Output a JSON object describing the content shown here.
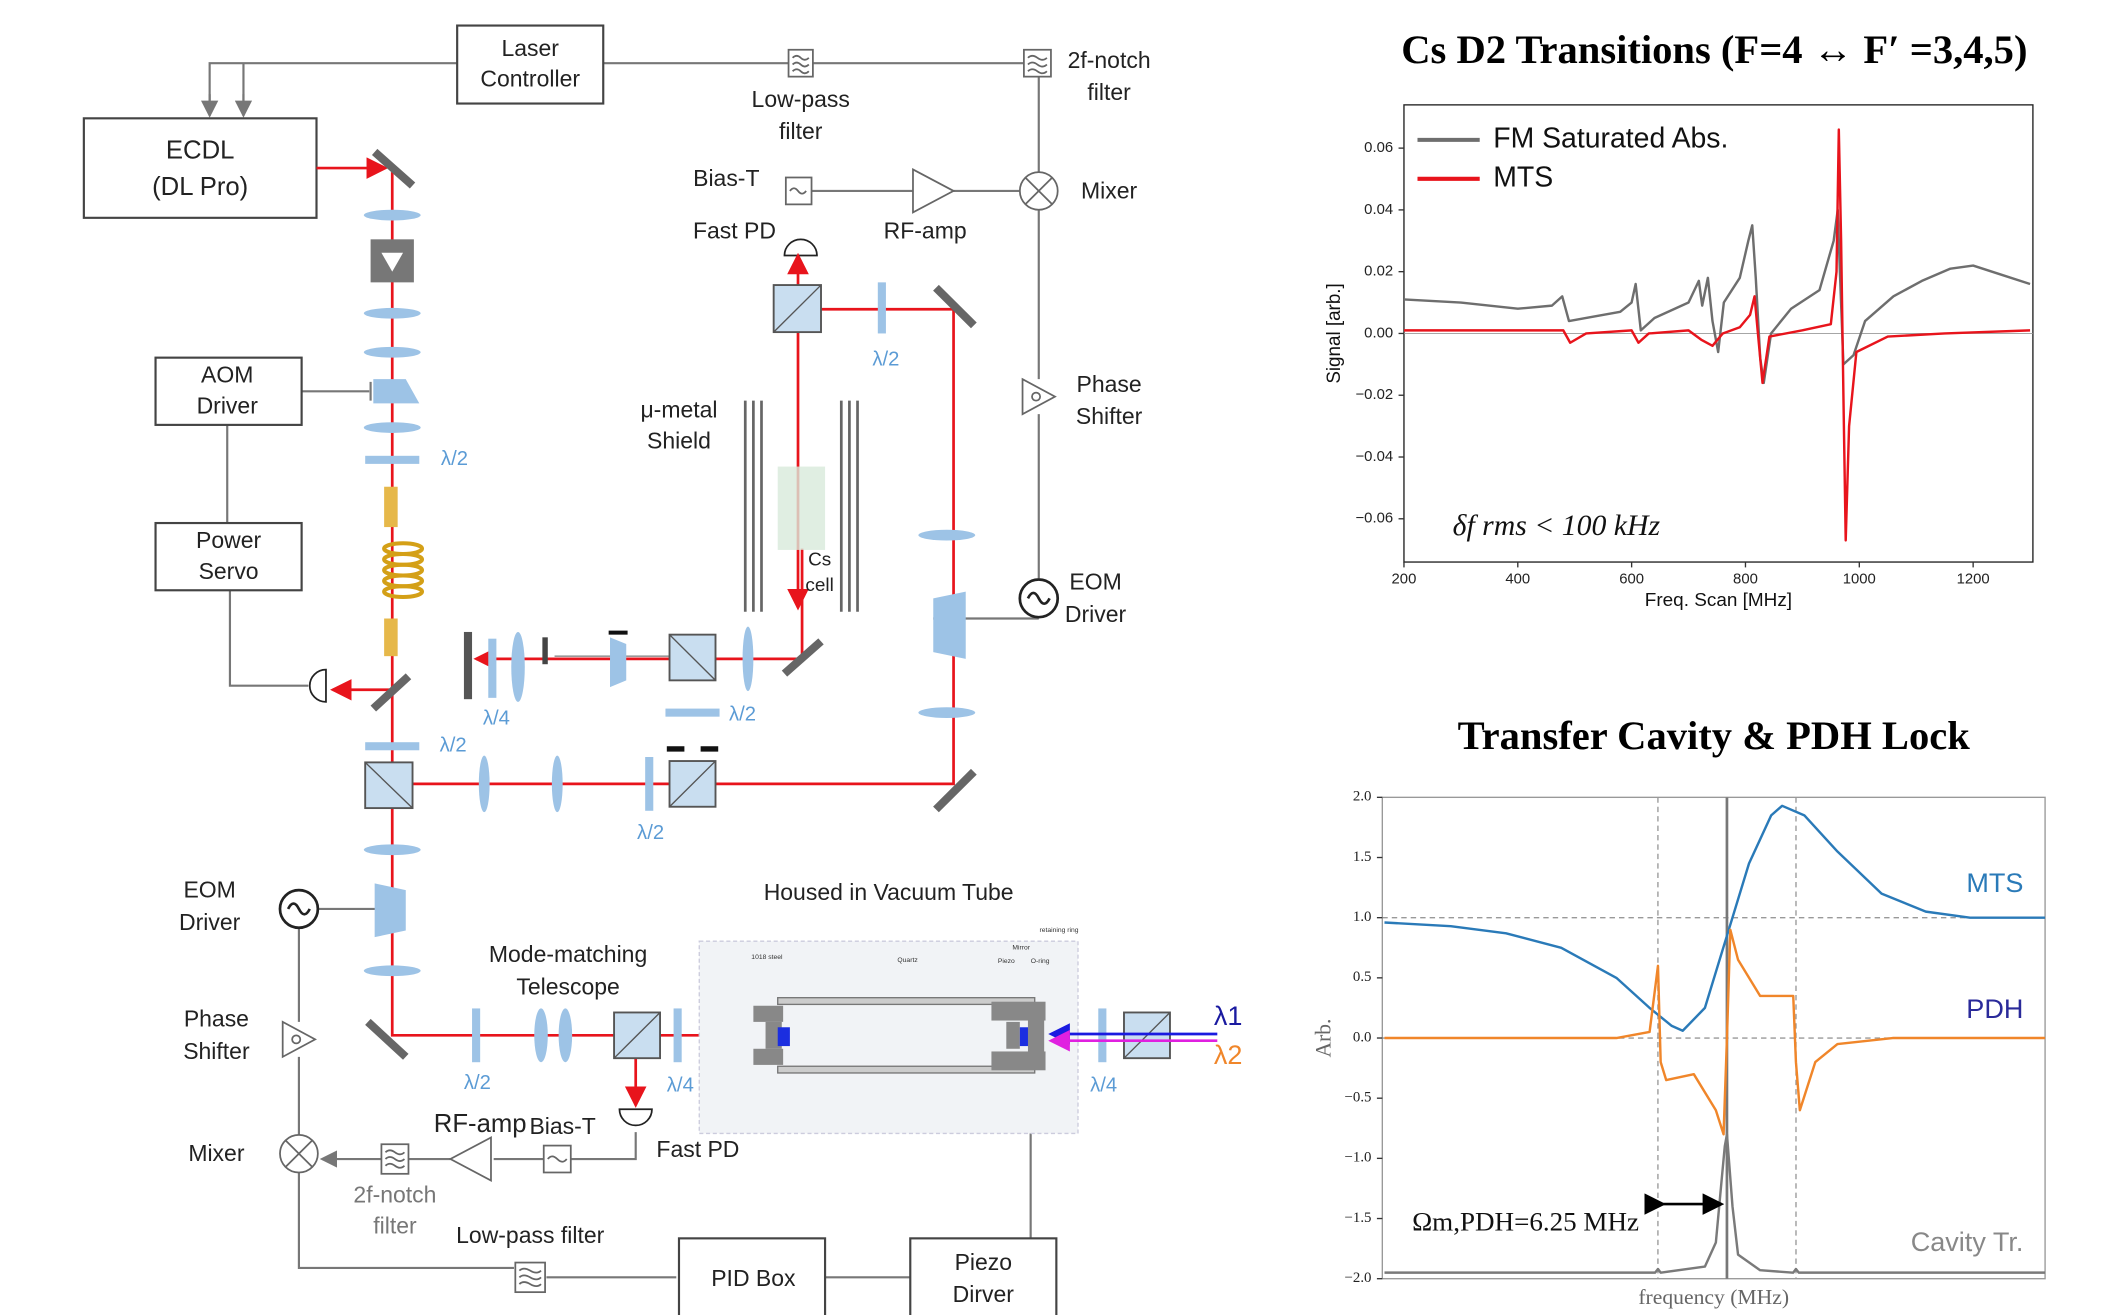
{
  "diagram": {
    "laser_controller": [
      "Laser",
      "Controller"
    ],
    "ecdl": [
      "ECDL",
      "(DL Pro)"
    ],
    "low_pass_top": [
      "Low-pass",
      "filter"
    ],
    "notch_top": [
      "2f-notch",
      "filter"
    ],
    "bias_t_top": "Bias-T",
    "fast_pd_top": "Fast PD",
    "rf_amp_top": "RF-amp",
    "mixer_top": "Mixer",
    "aom_driver": [
      "AOM",
      "Driver"
    ],
    "power_servo": [
      "Power",
      "Servo"
    ],
    "shield": [
      "μ-metal",
      "Shield"
    ],
    "cs_cell": [
      "Cs",
      "cell"
    ],
    "phase_shifter_right": [
      "Phase",
      "Shifter"
    ],
    "eom_driver_right": [
      "EOM",
      "Driver"
    ],
    "eom_driver_left": [
      "EOM",
      "Driver"
    ],
    "phase_shifter_left": [
      "Phase",
      "Shifter"
    ],
    "mixer_left": "Mixer",
    "vacuum": "Housed in Vacuum Tube",
    "telescope": [
      "Mode-matching",
      "Telescope"
    ],
    "rf_amp_bottom": "RF-amp",
    "bias_t_bottom": "Bias-T",
    "fast_pd_bottom": "Fast PD",
    "notch_bottom": [
      "2f-notch",
      "filter"
    ],
    "low_pass_bottom": "Low-pass filter",
    "pid_box": "PID Box",
    "piezo_driver": [
      "Piezo",
      "Dirver"
    ],
    "waveplates": [
      "λ/2",
      "λ/2",
      "λ/4",
      "λ/2",
      "λ/2",
      "λ/2",
      "λ/2",
      "λ/4",
      "λ/4"
    ],
    "lambda1": "λ1",
    "lambda2": "λ2",
    "cavity_parts": [
      "1018 steel",
      "Quartz",
      "Mirror",
      "Piezo",
      "O-ring",
      "retaining ring"
    ]
  },
  "chart_data": [
    {
      "type": "line",
      "title": "Cs D2 Transitions (F=4 ↔ F′ =3,4,5)",
      "xlabel": "Freq. Scan [MHz]",
      "ylabel": "Signal [arb.]",
      "annotation": "δf rms < 100 kHz",
      "xlim": [
        200,
        1305
      ],
      "xticks": [
        200,
        400,
        600,
        800,
        1000,
        1200
      ],
      "ylim": [
        -0.074,
        0.074
      ],
      "yticks": [
        {
          "value": -0.06,
          "label": "−0.06"
        },
        {
          "value": -0.04,
          "label": "−0.04"
        },
        {
          "value": -0.02,
          "label": "−0.02"
        },
        {
          "value": 0,
          "label": "0.00"
        },
        0.02,
        0.04,
        0.06
      ],
      "hlines": [
        0
      ],
      "legend": "upper left",
      "series": [
        {
          "name": "FM Saturated Abs.",
          "color": "#6e6e6e",
          "x": [
            200,
            300,
            400,
            460,
            478,
            490,
            520,
            580,
            600,
            607,
            616,
            640,
            700,
            718,
            724,
            734,
            742,
            752,
            762,
            790,
            805,
            812,
            818,
            826,
            832,
            845,
            880,
            930,
            955,
            962,
            966,
            972,
            990,
            1010,
            1060,
            1110,
            1160,
            1200,
            1250,
            1300
          ],
          "values": [
            0.011,
            0.01,
            0.008,
            0.009,
            0.012,
            0.004,
            0.005,
            0.007,
            0.01,
            0.016,
            0.001,
            0.005,
            0.01,
            0.017,
            0.009,
            0.018,
            0.004,
            -0.006,
            0.01,
            0.018,
            0.03,
            0.035,
            0.018,
            -0.008,
            -0.016,
            0.0,
            0.008,
            0.014,
            0.03,
            0.04,
            0.02,
            -0.01,
            -0.007,
            0.004,
            0.012,
            0.017,
            0.021,
            0.022,
            0.019,
            0.016
          ]
        },
        {
          "name": "MTS",
          "color": "#e8141c",
          "x": [
            200,
            400,
            480,
            492,
            520,
            600,
            612,
            630,
            700,
            722,
            742,
            760,
            790,
            808,
            816,
            822,
            830,
            842,
            900,
            950,
            960,
            964,
            968,
            972,
            976,
            982,
            995,
            1050,
            1150,
            1300
          ],
          "values": [
            0.001,
            0.001,
            0.001,
            -0.003,
            0.0,
            0.001,
            -0.003,
            0.0,
            0.001,
            -0.002,
            -0.004,
            0.0,
            0.002,
            0.006,
            0.012,
            0.0,
            -0.016,
            -0.001,
            0.001,
            0.003,
            0.02,
            0.066,
            0.03,
            -0.02,
            -0.067,
            -0.03,
            -0.006,
            -0.001,
            0.0,
            0.001
          ]
        }
      ]
    },
    {
      "type": "line",
      "title": "Transfer Cavity & PDH Lock",
      "xlabel": "frequency (MHz)",
      "ylabel": "Arb.",
      "annotation": "Ωm,PDH=6.25 MHz",
      "xlim": [
        -31.2,
        28.8
      ],
      "ylim": [
        -2.0,
        2.0
      ],
      "yticks": [
        {
          "value": -2.0,
          "label": "−2.0"
        },
        {
          "value": -1.5,
          "label": "−1.5"
        },
        {
          "value": -1.0,
          "label": "−1.0"
        },
        {
          "value": -0.5,
          "label": "−0.5"
        },
        {
          "value": 0,
          "label": "0.0"
        },
        0.5,
        {
          "value": 1,
          "label": "1.0"
        },
        1.5,
        {
          "value": 2,
          "label": "2.0"
        }
      ],
      "hlines": [
        1.0,
        0.0
      ],
      "vlines": [
        {
          "value": -6.25,
          "style": "dashed"
        },
        {
          "value": 0,
          "style": "solid"
        },
        {
          "value": 6.25,
          "style": "dashed"
        }
      ],
      "series": [
        {
          "name": "MTS",
          "color": "#2a7ab8",
          "label_color": "#2a7ab8",
          "x": [
            -31,
            -25,
            -20,
            -15,
            -10,
            -7,
            -5,
            -4,
            -2,
            0,
            2,
            4,
            5,
            7,
            10,
            14,
            18,
            22,
            28.8
          ],
          "values": [
            0.96,
            0.93,
            0.87,
            0.75,
            0.5,
            0.25,
            0.1,
            0.06,
            0.25,
            0.85,
            1.45,
            1.85,
            1.93,
            1.85,
            1.55,
            1.2,
            1.05,
            1.0,
            1.0
          ]
        },
        {
          "name": "PDH",
          "color": "#f0862a",
          "label_color": "#2a2a9a",
          "x": [
            -31,
            -10,
            -7,
            -6.25,
            -6,
            -5.5,
            -3,
            -1,
            -0.3,
            0,
            0.3,
            1,
            3,
            6,
            6.25,
            6.6,
            8,
            10,
            15,
            28.8
          ],
          "values": [
            0,
            0,
            0.05,
            0.6,
            -0.2,
            -0.35,
            -0.3,
            -0.6,
            -0.8,
            0,
            0.9,
            0.65,
            0.35,
            0.35,
            -0.2,
            -0.6,
            -0.2,
            -0.05,
            0,
            0
          ]
        },
        {
          "name": "Cavity Tr.",
          "color": "#7a7a7a",
          "label_color": "#888888",
          "x": [
            -31,
            -6.5,
            -6.25,
            -6,
            -2,
            -1,
            -0.5,
            -0.2,
            0,
            0.5,
            1,
            3,
            6,
            6.25,
            6.5,
            28.8
          ],
          "values": [
            -1.95,
            -1.95,
            -1.92,
            -1.95,
            -1.9,
            -1.7,
            -1.2,
            -0.9,
            -0.8,
            -1.4,
            -1.8,
            -1.93,
            -1.95,
            -1.92,
            -1.95,
            -1.95
          ]
        }
      ]
    }
  ]
}
